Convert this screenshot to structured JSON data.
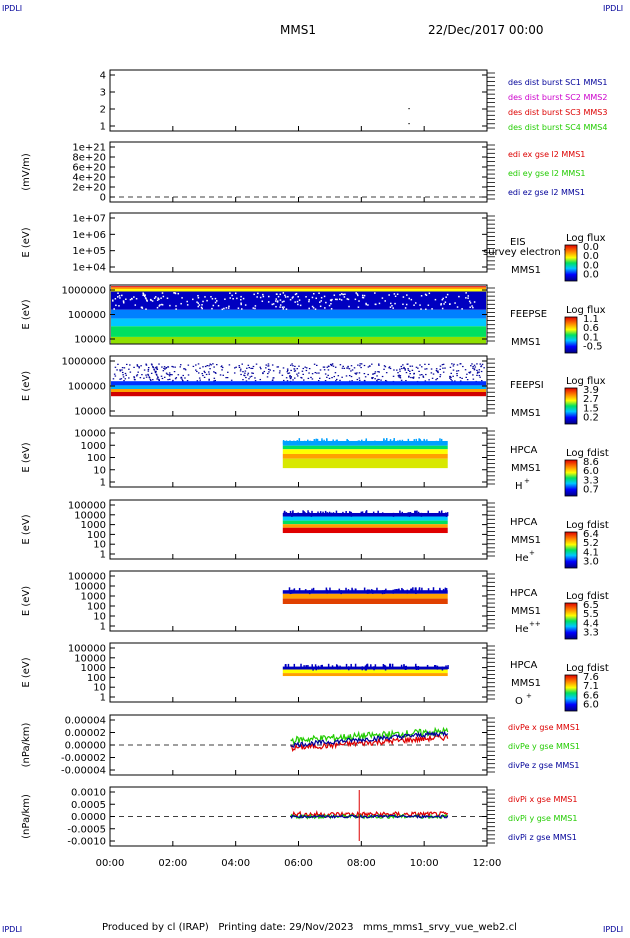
{
  "corner_marks": {
    "tl": "IPDLI",
    "tr": "IPDLI",
    "bl": "IPDLI",
    "br": "IPDLI"
  },
  "header": {
    "spacecraft": "MMS1",
    "date": "22/Dec/2017 00:00"
  },
  "footer": "Produced by cl (IRAP)   Printing date: 29/Nov/2023   mms_mms1_srvy_vue_web2.cl",
  "colors": {
    "red": "#dd0000",
    "green": "#22cc00",
    "blue": "#000099",
    "magenta": "#cc00cc",
    "frame": "#000000"
  },
  "chart_data": [
    {
      "type": "scatter",
      "panel": "dist-burst",
      "y_ticks": [
        "4",
        "3",
        "2",
        "1"
      ],
      "ylim": [
        1,
        4
      ],
      "legend": [
        {
          "name": "des dist burst SC1 MMS1",
          "color": "#000099"
        },
        {
          "name": "des dist burst SC2 MMS2",
          "color": "#cc00cc"
        },
        {
          "name": "des dist burst SC3 MMS3",
          "color": "#dd0000"
        },
        {
          "name": "des dist burst SC4 MMS4",
          "color": "#22cc00"
        }
      ],
      "points": [
        {
          "x": "09:30",
          "y": 2
        },
        {
          "x": "09:30",
          "y": 1
        }
      ]
    },
    {
      "type": "line",
      "panel": "edi-e",
      "ylabel": "(mV/m)",
      "y_ticks": [
        "1e+21",
        "8e+20",
        "6e+20",
        "4e+20",
        "2e+20",
        "0"
      ],
      "legend": [
        {
          "name": "edi ex gse l2 MMS1",
          "color": "#dd0000"
        },
        {
          "name": "edi ey gse l2 MMS1",
          "color": "#22cc00"
        },
        {
          "name": "edi ez gse l2 MMS1",
          "color": "#000099"
        }
      ]
    },
    {
      "type": "heatmap",
      "panel": "eis",
      "ylabel": "E (eV)",
      "y_ticks": [
        "1e+07",
        "1e+06",
        "1e+05",
        "1e+04"
      ],
      "labels": [
        "EIS",
        "MMS1"
      ],
      "overlay": "survey electron to",
      "colorbar": {
        "title": "Log flux",
        "ticks": [
          "0.0",
          "0.0",
          "0.0",
          "0.0"
        ]
      }
    },
    {
      "type": "heatmap",
      "panel": "feeps-e",
      "ylabel": "E (eV)",
      "y_ticks": [
        "1000000",
        "100000",
        "10000"
      ],
      "labels": [
        "FEEPSE",
        "MMS1"
      ],
      "colorbar": {
        "title": "Log flux",
        "ticks": [
          "1.1",
          "0.6",
          "0.1",
          "-0.5"
        ]
      }
    },
    {
      "type": "heatmap",
      "panel": "feeps-i",
      "ylabel": "E (eV)",
      "y_ticks": [
        "1000000",
        "100000",
        "10000"
      ],
      "labels": [
        "FEEPSI",
        "MMS1"
      ],
      "colorbar": {
        "title": "Log flux",
        "ticks": [
          "3.9",
          "2.7",
          "1.5",
          "0.2"
        ]
      }
    },
    {
      "type": "heatmap",
      "panel": "hpca-h",
      "ylabel": "E (eV)",
      "y_ticks": [
        "10000",
        "1000",
        "100",
        "10",
        "1"
      ],
      "labels": [
        "HPCA",
        "MMS1"
      ],
      "species": "H",
      "charge": "+",
      "colorbar": {
        "title": "Log fdist",
        "ticks": [
          "8.6",
          "6.0",
          "3.3",
          "0.7"
        ]
      }
    },
    {
      "type": "heatmap",
      "panel": "hpca-he",
      "ylabel": "E (eV)",
      "y_ticks": [
        "100000",
        "10000",
        "1000",
        "100",
        "10",
        "1"
      ],
      "labels": [
        "HPCA",
        "MMS1"
      ],
      "species": "He",
      "charge": "+",
      "colorbar": {
        "title": "Log fdist",
        "ticks": [
          "6.4",
          "5.2",
          "4.1",
          "3.0"
        ]
      }
    },
    {
      "type": "heatmap",
      "panel": "hpca-hepp",
      "ylabel": "E (eV)",
      "y_ticks": [
        "100000",
        "10000",
        "1000",
        "100",
        "10",
        "1"
      ],
      "labels": [
        "HPCA",
        "MMS1"
      ],
      "species": "He",
      "charge": "++",
      "colorbar": {
        "title": "Log fdist",
        "ticks": [
          "6.5",
          "5.5",
          "4.4",
          "3.3"
        ]
      }
    },
    {
      "type": "heatmap",
      "panel": "hpca-o",
      "ylabel": "E (eV)",
      "y_ticks": [
        "100000",
        "10000",
        "1000",
        "100",
        "10",
        "1"
      ],
      "labels": [
        "HPCA",
        "MMS1"
      ],
      "species": "O",
      "charge": "+",
      "colorbar": {
        "title": "Log fdist",
        "ticks": [
          "7.6",
          "7.1",
          "6.6",
          "6.0"
        ]
      }
    },
    {
      "type": "line",
      "panel": "divpe",
      "ylabel": "(nPa/km)",
      "y_ticks": [
        "0.00004",
        "0.00002",
        "0.00000",
        "-0.00002",
        "-0.00004"
      ],
      "ylim": [
        -5e-05,
        5e-05
      ],
      "legend": [
        {
          "name": "divPe x gse MMS1",
          "color": "#dd0000"
        },
        {
          "name": "divPe y gse MMS1",
          "color": "#22cc00"
        },
        {
          "name": "divPe z gse MMS1",
          "color": "#000099"
        }
      ]
    },
    {
      "type": "line",
      "panel": "divpi",
      "ylabel": "(nPa/km)",
      "y_ticks": [
        "0.0010",
        "0.0005",
        "0.0000",
        "-0.0005",
        "-0.0010"
      ],
      "ylim": [
        -0.0014,
        0.0014
      ],
      "legend": [
        {
          "name": "divPi x gse MMS1",
          "color": "#dd0000"
        },
        {
          "name": "divPi y gse MMS1",
          "color": "#22cc00"
        },
        {
          "name": "divPi z gse MMS1",
          "color": "#000099"
        }
      ]
    }
  ],
  "x_axis": {
    "ticks": [
      "00:00",
      "02:00",
      "04:00",
      "06:00",
      "08:00",
      "10:00",
      "12:00"
    ],
    "range": [
      "00:00",
      "12:00"
    ]
  }
}
